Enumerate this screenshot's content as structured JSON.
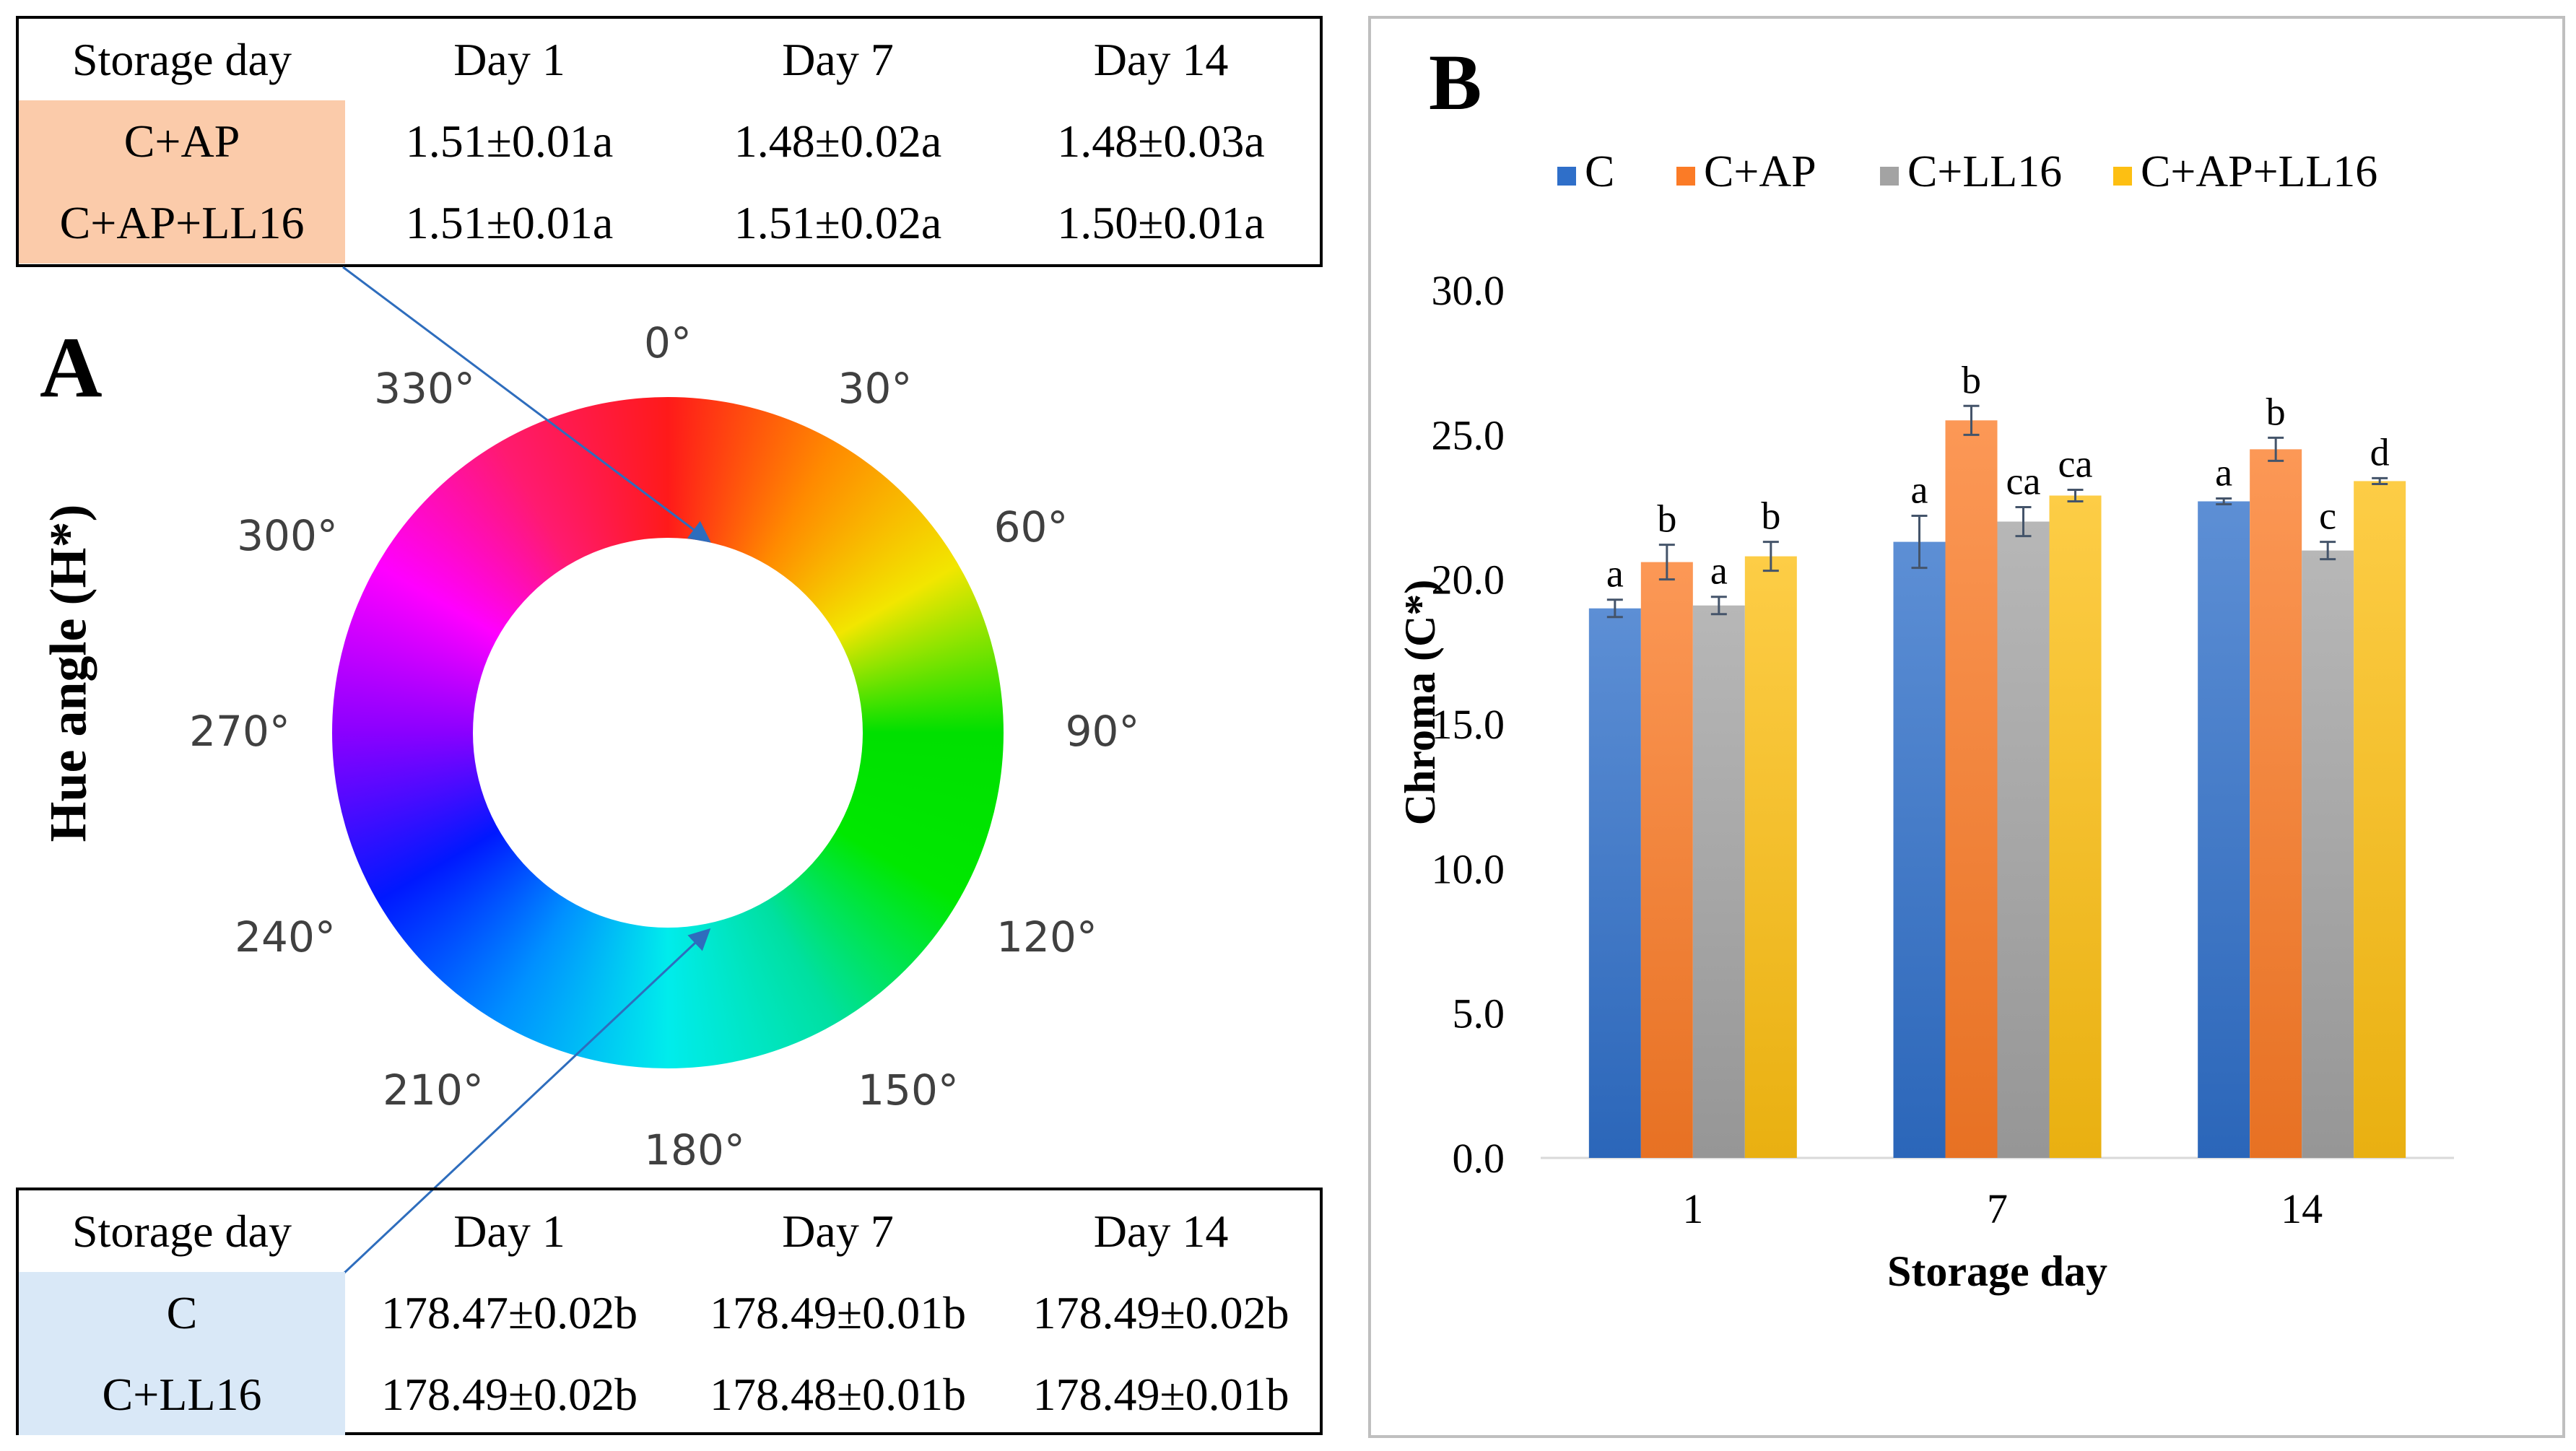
{
  "panel_a": {
    "letter": "A",
    "axis_label": "Hue angle (H*)",
    "degrees": [
      "0°",
      "30°",
      "60°",
      "90°",
      "120°",
      "150°",
      "180°",
      "210°",
      "240°",
      "270°",
      "300°",
      "330°"
    ],
    "top_table": {
      "headers": [
        "Storage day",
        "Day 1",
        "Day 7",
        "Day 14"
      ],
      "rows": [
        {
          "label": "C+AP",
          "values": [
            "1.51±0.01a",
            "1.48±0.02a",
            "1.48±0.03a"
          ]
        },
        {
          "label": "C+AP+LL16",
          "values": [
            "1.51±0.01a",
            "1.51±0.02a",
            "1.50±0.01a"
          ]
        }
      ],
      "highlight_color": "#fbcbaa"
    },
    "bottom_table": {
      "headers": [
        "Storage day",
        "Day 1",
        "Day 7",
        "Day 14"
      ],
      "rows": [
        {
          "label": "C",
          "values": [
            "178.47±0.02b",
            "178.49±0.01b",
            "178.49±0.02b"
          ]
        },
        {
          "label": "C+LL16",
          "values": [
            "178.49±0.02b",
            "178.48±0.01b",
            "178.49±0.01b"
          ]
        }
      ],
      "highlight_color": "#d9e8f7"
    }
  },
  "chart_data": {
    "type": "bar",
    "panel_letter": "B",
    "title": "",
    "xlabel": "Storage day",
    "ylabel": "Chroma (C*)",
    "ylim": [
      0,
      30
    ],
    "yticks": [
      "0.0",
      "5.0",
      "10.0",
      "15.0",
      "20.0",
      "25.0",
      "30.0"
    ],
    "categories": [
      "1",
      "7",
      "14"
    ],
    "legend_position": "top",
    "series": [
      {
        "name": "C",
        "color": "#2f6fc9",
        "values": [
          19.0,
          21.3,
          22.7
        ],
        "errors": [
          0.3,
          0.9,
          0.1
        ],
        "labels": [
          "a",
          "a",
          "a"
        ]
      },
      {
        "name": "C+AP",
        "color": "#fb7b26",
        "values": [
          20.6,
          25.5,
          24.5
        ],
        "errors": [
          0.6,
          0.5,
          0.4
        ],
        "labels": [
          "b",
          "b",
          "b"
        ]
      },
      {
        "name": "C+LL16",
        "color": "#a3a3a3",
        "values": [
          19.1,
          22.0,
          21.0
        ],
        "errors": [
          0.3,
          0.5,
          0.3
        ],
        "labels": [
          "a",
          "ca",
          "c"
        ]
      },
      {
        "name": "C+AP+LL16",
        "color": "#fdbf12",
        "values": [
          20.8,
          22.9,
          23.4
        ],
        "errors": [
          0.5,
          0.2,
          0.1
        ],
        "labels": [
          "b",
          "ca",
          "d"
        ]
      }
    ]
  }
}
